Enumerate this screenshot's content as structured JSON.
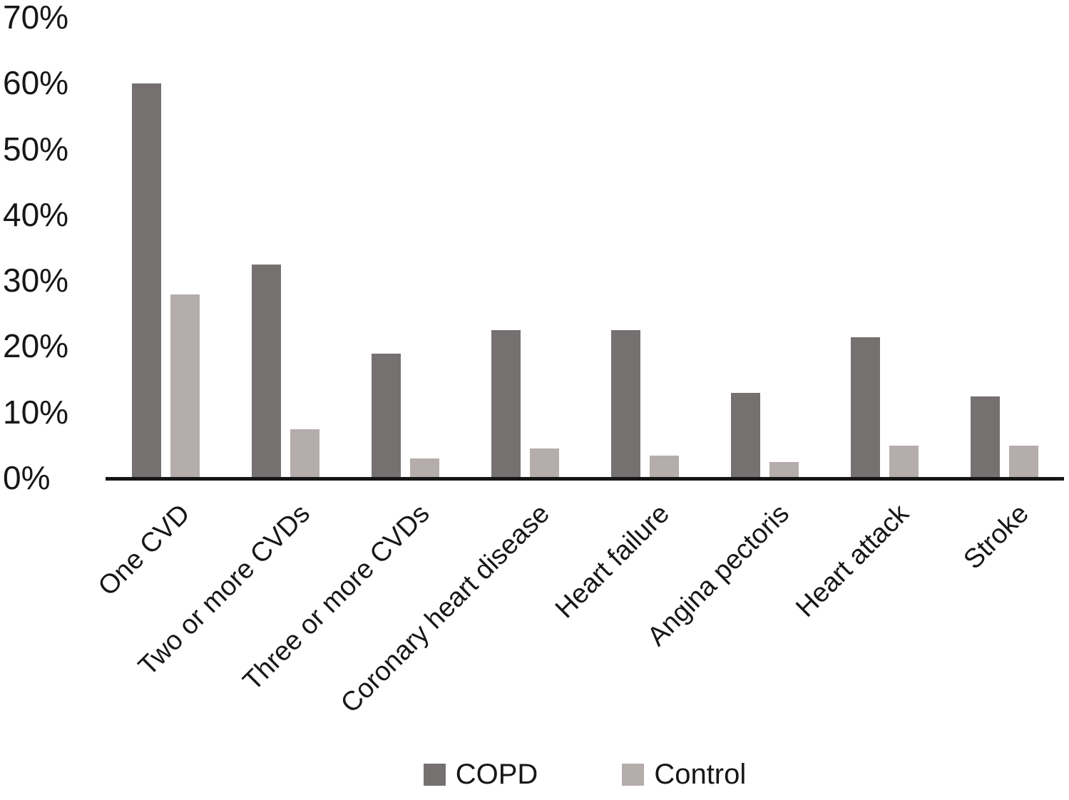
{
  "chart_data": {
    "type": "bar",
    "title": "",
    "xlabel": "",
    "ylabel": "",
    "categories": [
      "One CVD",
      "Two or more CVDs",
      "Three or more CVDs",
      "Coronary heart disease",
      "Heart failure",
      "Angina pectoris",
      "Heart attack",
      "Stroke"
    ],
    "series": [
      {
        "name": "COPD",
        "color": "#767171",
        "values": [
          60,
          32.5,
          19,
          22.5,
          22.5,
          13,
          21.5,
          12.5
        ]
      },
      {
        "name": "Control",
        "color": "#b5acac",
        "values": [
          28,
          7.5,
          3,
          4.5,
          3.5,
          2.5,
          5,
          5
        ]
      }
    ],
    "ylim": [
      0,
      70
    ],
    "ytick_step": 10,
    "ytick_labels": [
      "0%",
      "10%",
      "20%",
      "30%",
      "40%",
      "50%",
      "60%",
      "70%"
    ],
    "grid": false,
    "legend_position": "bottom",
    "axis_color": "#161616"
  }
}
